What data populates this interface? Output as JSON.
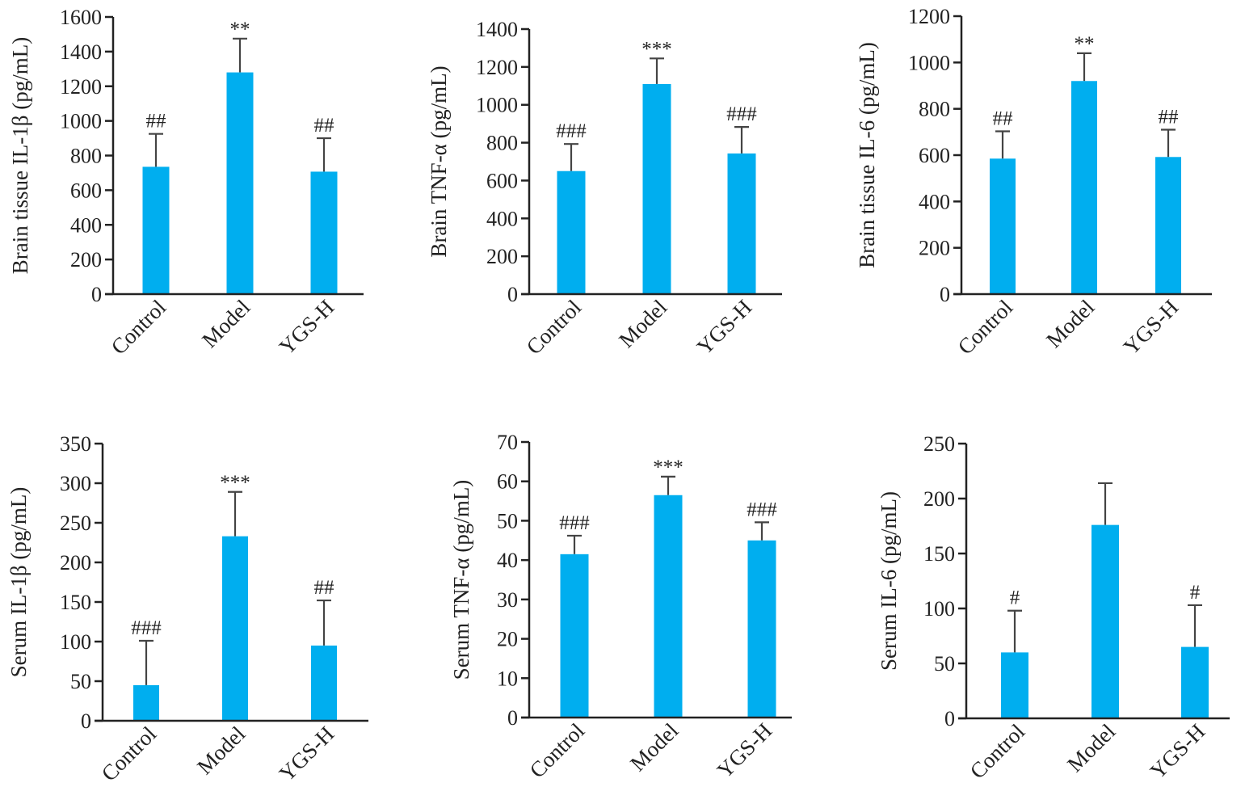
{
  "colors": {
    "bar": "#00aeef",
    "axis": "#222222",
    "error": "#444444"
  },
  "chart_data": [
    {
      "type": "bar",
      "ylabel": "Brain tissue IL-1β (pg/mL)",
      "categories": [
        "Control",
        "Model",
        "YGS-H"
      ],
      "values": [
        735,
        1280,
        707
      ],
      "errors": [
        190,
        195,
        193
      ],
      "annotations": [
        "##",
        "**",
        "##"
      ],
      "ylim": [
        0,
        1600
      ],
      "yticks": [
        0,
        200,
        400,
        600,
        800,
        1000,
        1200,
        1400,
        1600
      ]
    },
    {
      "type": "bar",
      "ylabel": "Brain TNF-α (pg/mL)",
      "categories": [
        "Control",
        "Model",
        "YGS-H"
      ],
      "values": [
        650,
        1110,
        743
      ],
      "errors": [
        143,
        135,
        140
      ],
      "annotations": [
        "###",
        "***",
        "###"
      ],
      "ylim": [
        0,
        1400
      ],
      "yticks": [
        0,
        200,
        400,
        600,
        800,
        1000,
        1200,
        1400
      ]
    },
    {
      "type": "bar",
      "ylabel": "Brain tissue IL-6 (pg/mL)",
      "categories": [
        "Control",
        "Model",
        "YGS-H"
      ],
      "values": [
        585,
        920,
        592
      ],
      "errors": [
        118,
        120,
        118
      ],
      "annotations": [
        "##",
        "**",
        "##"
      ],
      "ylim": [
        0,
        1200
      ],
      "yticks": [
        0,
        200,
        400,
        600,
        800,
        1000,
        1200
      ]
    },
    {
      "type": "bar",
      "ylabel": "Serum IL-1β (pg/mL)",
      "categories": [
        "Control",
        "Model",
        "YGS-H"
      ],
      "values": [
        45,
        233,
        95
      ],
      "errors": [
        56,
        56,
        57
      ],
      "annotations": [
        "###",
        "***",
        "##"
      ],
      "ylim": [
        0,
        350
      ],
      "yticks": [
        0,
        50,
        100,
        150,
        200,
        250,
        300,
        350
      ]
    },
    {
      "type": "bar",
      "ylabel": "Serum TNF-α (pg/mL)",
      "categories": [
        "Control",
        "Model",
        "YGS-H"
      ],
      "values": [
        41.5,
        56.5,
        45
      ],
      "errors": [
        4.7,
        4.7,
        4.6
      ],
      "annotations": [
        "###",
        "***",
        "###"
      ],
      "ylim": [
        0,
        70
      ],
      "yticks": [
        0,
        10,
        20,
        30,
        40,
        50,
        60,
        70
      ]
    },
    {
      "type": "bar",
      "ylabel": "Serum IL-6 (pg/mL)",
      "categories": [
        "Control",
        "Model",
        "YGS-H"
      ],
      "values": [
        60,
        176,
        65
      ],
      "errors": [
        38,
        38,
        38
      ],
      "annotations": [
        "#",
        "",
        "#"
      ],
      "ylim": [
        0,
        250
      ],
      "yticks": [
        0,
        50,
        100,
        150,
        200,
        250
      ]
    }
  ]
}
